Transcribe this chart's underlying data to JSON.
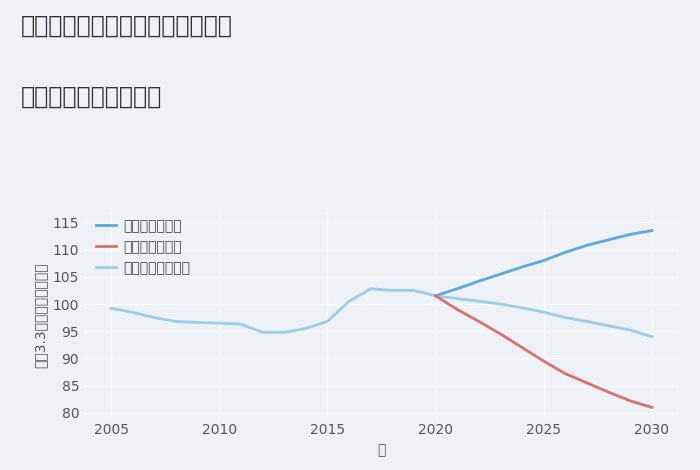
{
  "title_line1": "愛知県名古屋市中川区打出本町の",
  "title_line2": "中古戸建ての価格推移",
  "xlabel": "年",
  "ylabel": "坪（3.3㎡）単価（万円）",
  "background_color": "#eef2f7",
  "plot_bg_color": "#eef2f7",
  "historical_years": [
    2005,
    2006,
    2007,
    2008,
    2009,
    2010,
    2011,
    2012,
    2013,
    2014,
    2015,
    2016,
    2017,
    2018,
    2019,
    2020
  ],
  "historical_values": [
    99.2,
    98.5,
    97.5,
    96.8,
    96.6,
    96.5,
    96.3,
    94.8,
    94.8,
    95.5,
    96.8,
    100.5,
    102.8,
    102.5,
    102.5,
    101.5
  ],
  "future_years": [
    2020,
    2021,
    2022,
    2023,
    2024,
    2025,
    2026,
    2027,
    2028,
    2029,
    2030
  ],
  "good_values": [
    101.5,
    102.8,
    104.2,
    105.5,
    106.8,
    108.0,
    109.5,
    110.8,
    111.8,
    112.8,
    113.5
  ],
  "bad_values": [
    101.5,
    99.0,
    96.8,
    94.5,
    92.0,
    89.5,
    87.2,
    85.5,
    83.8,
    82.2,
    81.0
  ],
  "normal_values": [
    101.5,
    101.0,
    100.5,
    100.0,
    99.3,
    98.5,
    97.5,
    96.8,
    96.0,
    95.2,
    94.0
  ],
  "good_color": "#5aaadf",
  "bad_color": "#d97070",
  "normal_color": "#9ecde8",
  "historical_color": "#9ecde8",
  "ylim": [
    79,
    117
  ],
  "yticks": [
    80,
    85,
    90,
    95,
    100,
    105,
    110,
    115
  ],
  "xticks": [
    2005,
    2010,
    2015,
    2020,
    2025,
    2030
  ],
  "legend_labels": [
    "グッドシナリオ",
    "バッドシナリオ",
    "ノーマルシナリオ"
  ],
  "title_fontsize": 17,
  "label_fontsize": 10,
  "tick_fontsize": 10,
  "legend_fontsize": 10,
  "line_width": 2.0
}
